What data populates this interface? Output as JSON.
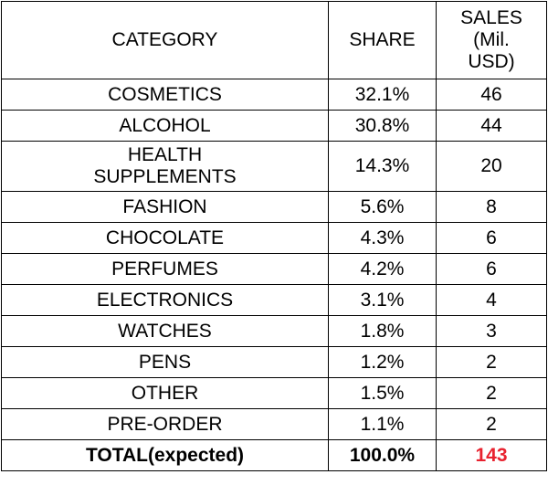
{
  "table": {
    "headers": {
      "category": "CATEGORY",
      "share": "SHARE",
      "sales": "SALES (Mil. USD)"
    },
    "rows": [
      {
        "category": "COSMETICS",
        "share": "32.1%",
        "sales": "46"
      },
      {
        "category": "ALCOHOL",
        "share": "30.8%",
        "sales": "44"
      },
      {
        "category": "HEALTH SUPPLEMENTS",
        "share": "14.3%",
        "sales": "20"
      },
      {
        "category": "FASHION",
        "share": "5.6%",
        "sales": "8"
      },
      {
        "category": "CHOCOLATE",
        "share": "4.3%",
        "sales": "6"
      },
      {
        "category": "PERFUMES",
        "share": "4.2%",
        "sales": "6"
      },
      {
        "category": "ELECTRONICS",
        "share": "3.1%",
        "sales": "4"
      },
      {
        "category": "WATCHES",
        "share": "1.8%",
        "sales": "3"
      },
      {
        "category": "PENS",
        "share": "1.2%",
        "sales": "2"
      },
      {
        "category": "OTHER",
        "share": "1.5%",
        "sales": "2"
      },
      {
        "category": "PRE-ORDER",
        "share": "1.1%",
        "sales": "2"
      }
    ],
    "total": {
      "category": "TOTAL(expected)",
      "share": "100.0%",
      "sales": "143"
    }
  },
  "colors": {
    "total_sales": "#e8222f",
    "border": "#000000"
  }
}
